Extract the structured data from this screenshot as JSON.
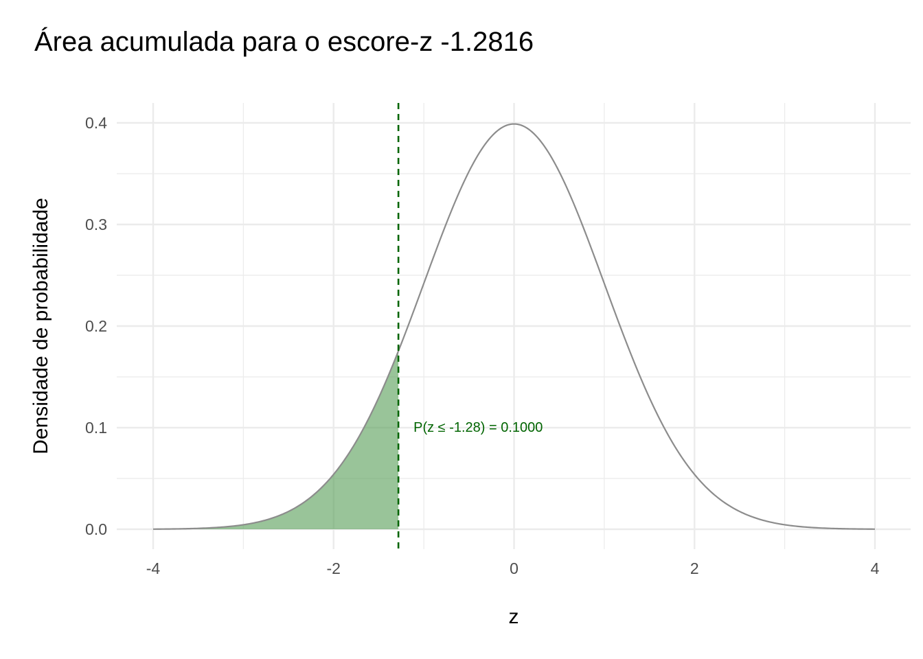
{
  "chart_data": {
    "type": "area",
    "title": "Área acumulada para o escore-z -1.2816",
    "xlabel": "z",
    "ylabel": "Densidade de probabilidade",
    "xlim": [
      -4,
      4
    ],
    "ylim": [
      0,
      0.4
    ],
    "x_ticks": [
      -4,
      -2,
      0,
      2,
      4
    ],
    "x_tick_labels": [
      "-4",
      "-2",
      "0",
      "2",
      "4"
    ],
    "y_ticks": [
      0.0,
      0.1,
      0.2,
      0.3,
      0.4
    ],
    "y_tick_labels": [
      "0.0",
      "0.1",
      "0.2",
      "0.3",
      "0.4"
    ],
    "grid": true,
    "distribution": "normal",
    "mean": 0,
    "sd": 1,
    "z_score": -1.2816,
    "shaded_region": "left",
    "cumulative_probability": 0.1,
    "annotation": "P(z ≤ -1.28) = 0.1000",
    "colors": {
      "curve": "#8c8c8c",
      "fill": "#4f9a4f",
      "cutoff_line": "#006400",
      "annotation": "#006400",
      "grid": "#ebebeb"
    }
  }
}
